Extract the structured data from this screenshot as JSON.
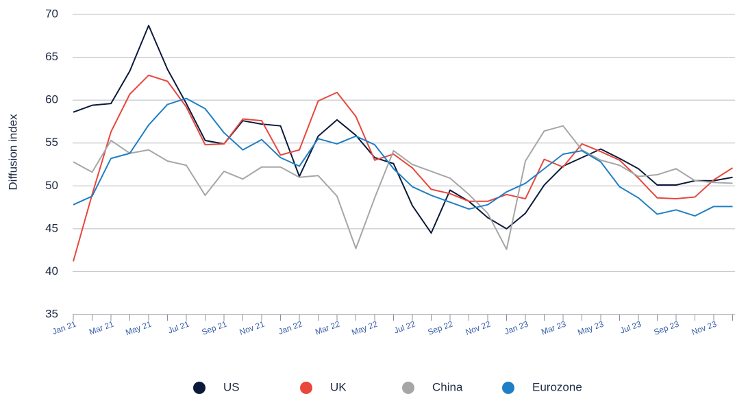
{
  "chart_data": {
    "type": "line",
    "y_label": "Diffusion index",
    "categories": [
      "Jan 21",
      null,
      "Mar 21",
      null,
      "May 21",
      null,
      "Jul 21",
      null,
      "Sep 21",
      null,
      "Nov 21",
      null,
      "Jan 22",
      null,
      "Mar 22",
      null,
      "May 22",
      null,
      "Jul 22",
      null,
      "Sep 22",
      null,
      "Nov 22",
      null,
      "Jan 23",
      null,
      "Mar 23",
      null,
      "May 23",
      null,
      "Jul 23",
      null,
      "Sep 23",
      null,
      "Nov 23",
      null
    ],
    "series": [
      {
        "name": "US",
        "color": "#0b1a3a",
        "values": [
          58.6,
          59.4,
          59.6,
          63.4,
          68.7,
          63.6,
          59.6,
          55.3,
          54.9,
          57.6,
          57.2,
          57.0,
          51.1,
          55.8,
          57.7,
          55.9,
          53.3,
          52.6,
          47.7,
          44.5,
          49.5,
          48.2,
          46.3,
          45.0,
          46.8,
          50.1,
          52.3,
          53.3,
          54.3,
          53.2,
          52.0,
          50.1,
          50.1,
          50.6,
          50.6,
          51.0
        ]
      },
      {
        "name": "UK",
        "color": "#e8473c",
        "values": [
          41.2,
          49.0,
          56.3,
          60.7,
          62.9,
          62.2,
          59.2,
          54.8,
          54.9,
          57.8,
          57.6,
          53.6,
          54.2,
          59.9,
          60.9,
          58.1,
          53.0,
          53.7,
          52.1,
          49.6,
          49.1,
          48.2,
          48.2,
          49.0,
          48.5,
          53.1,
          52.2,
          54.9,
          54.0,
          53.0,
          50.9,
          48.6,
          48.5,
          48.7,
          50.7,
          52.1
        ]
      },
      {
        "name": "China",
        "color": "#a6a6a6",
        "values": [
          52.8,
          51.6,
          55.3,
          53.8,
          54.2,
          52.9,
          52.4,
          48.9,
          51.7,
          50.8,
          52.2,
          52.2,
          51.0,
          51.2,
          48.8,
          42.7,
          48.6,
          54.1,
          52.5,
          51.7,
          50.9,
          49.0,
          46.8,
          42.6,
          52.9,
          56.4,
          57.0,
          54.2,
          53.0,
          52.4,
          51.1,
          51.3,
          52.0,
          50.6,
          50.4,
          50.3
        ]
      },
      {
        "name": "Eurozone",
        "color": "#1f7fc4",
        "values": [
          47.8,
          48.8,
          53.2,
          53.8,
          57.1,
          59.5,
          60.2,
          59.0,
          56.2,
          54.2,
          55.4,
          53.3,
          52.3,
          55.5,
          54.9,
          55.8,
          54.8,
          52.0,
          49.9,
          48.9,
          48.1,
          47.3,
          47.8,
          49.3,
          50.3,
          52.0,
          53.7,
          54.1,
          52.8,
          49.9,
          48.6,
          46.7,
          47.2,
          46.5,
          47.6,
          47.6
        ]
      }
    ],
    "ylim": [
      35,
      70
    ],
    "yticks": [
      35,
      40,
      45,
      50,
      55,
      60,
      65,
      70
    ],
    "grid": true
  }
}
